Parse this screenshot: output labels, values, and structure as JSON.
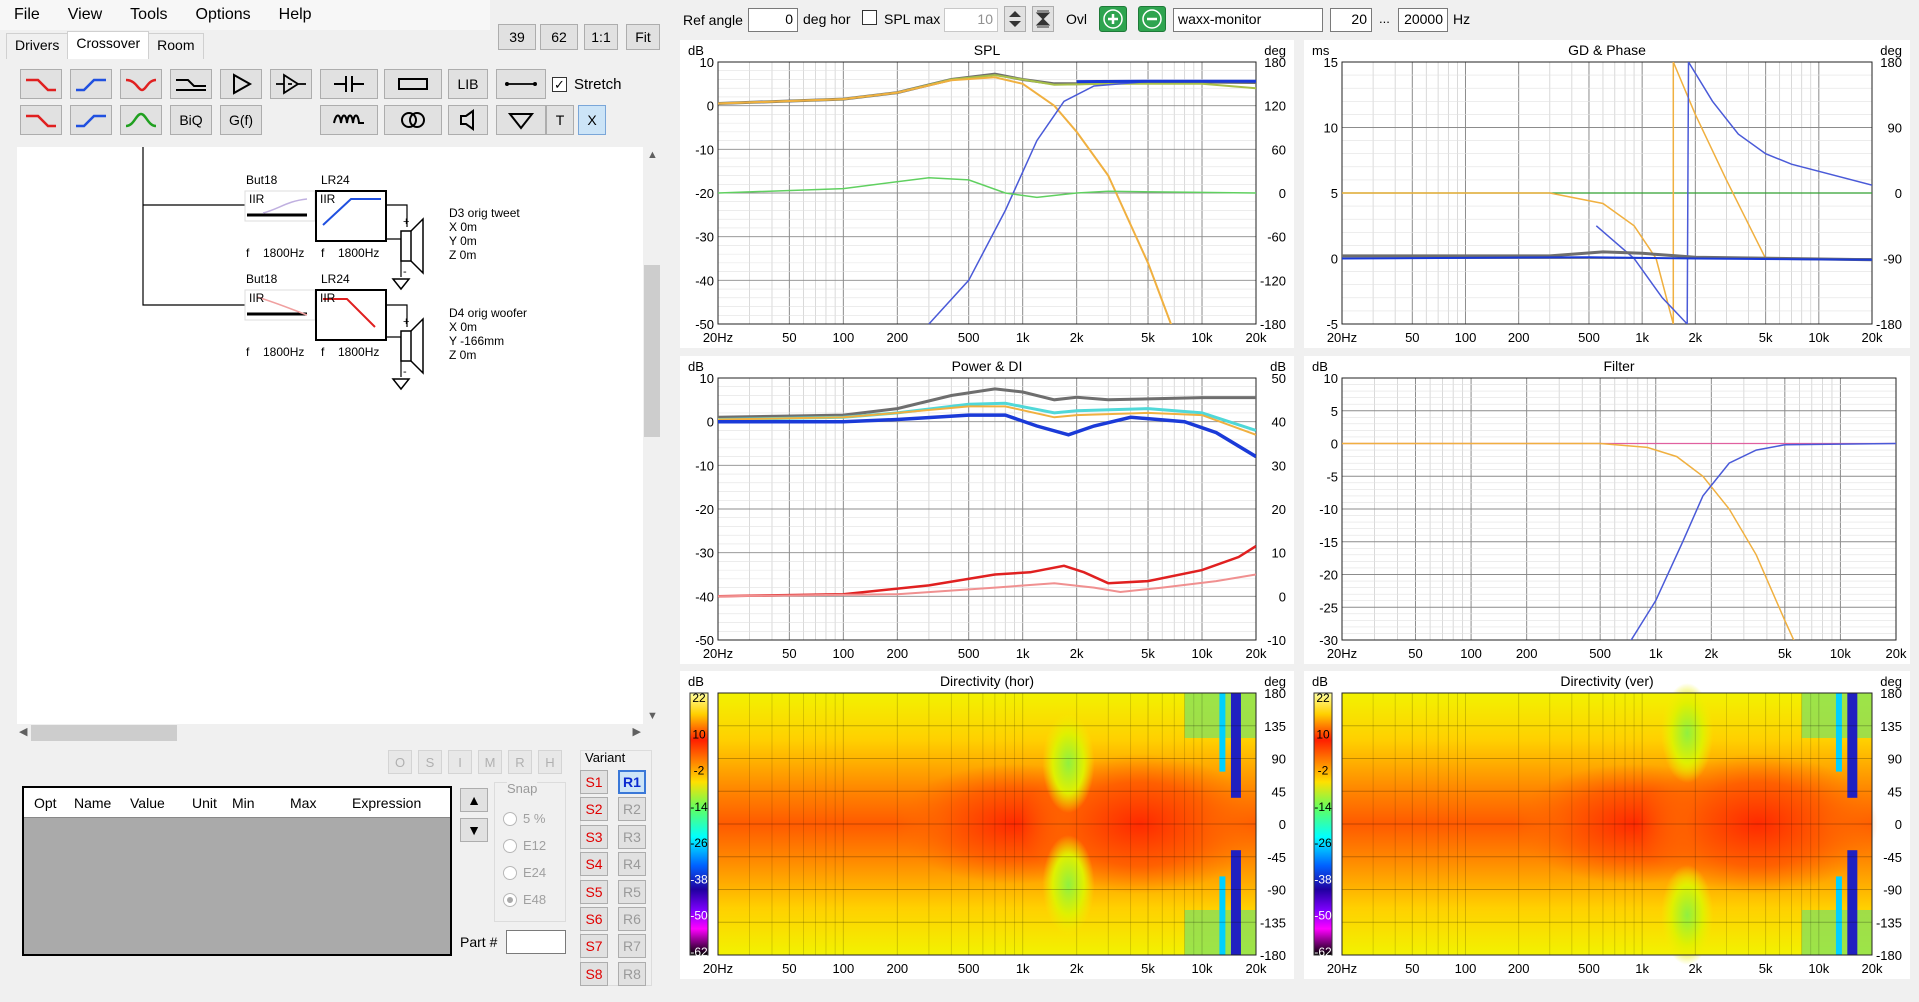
{
  "menu": [
    "File",
    "View",
    "Tools",
    "Options",
    "Help"
  ],
  "tabs": [
    "Drivers",
    "Crossover",
    "Room"
  ],
  "zoom_buttons": [
    "39",
    "62",
    "1:1",
    "Fit"
  ],
  "toolbar": {
    "lib": "LIB",
    "biq": "BiQ",
    "gf": "G(f)",
    "t": "T",
    "x": "X",
    "stretch": "Stretch"
  },
  "schematic": {
    "top": {
      "filter1_name": "But18",
      "filter2_name": "LR24",
      "type": "IIR",
      "f_label": "f",
      "freq": "1800Hz",
      "driver": "D3 orig tweet",
      "x": "X 0m",
      "y": "Y 0m",
      "z": "Z 0m"
    },
    "bottom": {
      "filter1_name": "But18",
      "filter2_name": "LR24",
      "type": "IIR",
      "f_label": "f",
      "freq": "1800Hz",
      "driver": "D4 orig woofer",
      "x": "X 0m",
      "y": "Y -166mm",
      "z": "Z 0m"
    }
  },
  "small_buttons": [
    "O",
    "S",
    "I",
    "M",
    "R",
    "H"
  ],
  "table_headers": [
    "Opt",
    "Name",
    "Value",
    "Unit",
    "Min",
    "Max",
    "Expression"
  ],
  "snap": {
    "title": "Snap",
    "options": [
      "5 %",
      "E12",
      "E24",
      "E48"
    ],
    "selected": "E48"
  },
  "part_label": "Part #",
  "variant": {
    "title": "Variant",
    "s": [
      "S1",
      "S2",
      "S3",
      "S4",
      "S5",
      "S6",
      "S7",
      "S8"
    ],
    "r": [
      "R1",
      "R2",
      "R3",
      "R4",
      "R5",
      "R6",
      "R7",
      "R8"
    ],
    "selected": "R1"
  },
  "topbar": {
    "ref_angle_label": "Ref angle",
    "ref_angle_value": "0",
    "deg_hor": "deg hor",
    "spl_max_label": "SPL max",
    "spl_max_value": "10",
    "ovl": "Ovl",
    "name_value": "waxx-monitor",
    "f_min": "20",
    "ellipsis": "...",
    "f_max": "20000",
    "hz": "Hz"
  },
  "freq_ticks": [
    "20Hz",
    "50",
    "100",
    "200",
    "500",
    "1k",
    "2k",
    "5k",
    "10k",
    "20k"
  ],
  "colors": {
    "orange": "#f0b040",
    "blue": "#4a5ad8",
    "green": "#60d060",
    "gray": "#6e6e6e",
    "navy": "#1a3ad8",
    "olive": "#a8c048",
    "red": "#e02020",
    "pink": "#f09090",
    "cyan": "#50d8d8",
    "darkgreen": "#30a030"
  },
  "charts": {
    "spl": {
      "title": "SPL",
      "unit_left": "dB",
      "unit_right": "deg",
      "left_ticks": [
        "10",
        "0",
        "-10",
        "-20",
        "-30",
        "-40",
        "-50"
      ],
      "right_ticks": [
        "180",
        "120",
        "60",
        "0",
        "-60",
        "-120",
        "-180"
      ]
    },
    "gd": {
      "title": "GD & Phase",
      "unit_left": "ms",
      "unit_right": "deg",
      "left_ticks": [
        "15",
        "10",
        "5",
        "0",
        "-5"
      ],
      "right_ticks": [
        "180",
        "90",
        "0",
        "-90",
        "-180"
      ]
    },
    "power": {
      "title": "Power & DI",
      "unit_left": "dB",
      "unit_right": "dB",
      "left_ticks": [
        "10",
        "0",
        "-10",
        "-20",
        "-30",
        "-40",
        "-50"
      ],
      "right_ticks": [
        "50",
        "40",
        "30",
        "20",
        "10",
        "0",
        "-10"
      ]
    },
    "filter": {
      "title": "Filter",
      "unit_left": "dB",
      "left_ticks": [
        "10",
        "5",
        "0",
        "-5",
        "-10",
        "-15",
        "-20",
        "-25",
        "-30"
      ]
    },
    "dir_hor": {
      "title": "Directivity (hor)",
      "unit_left": "dB",
      "unit_right": "deg",
      "scale": [
        "22",
        "10",
        "-2",
        "-14",
        "-26",
        "-38",
        "-50",
        "-62"
      ],
      "right_ticks": [
        "180",
        "135",
        "90",
        "45",
        "0",
        "-45",
        "-90",
        "-135",
        "-180"
      ]
    },
    "dir_ver": {
      "title": "Directivity (ver)",
      "unit_left": "dB",
      "unit_right": "deg",
      "scale": [
        "22",
        "10",
        "-2",
        "-14",
        "-26",
        "-38",
        "-50",
        "-62"
      ],
      "right_ticks": [
        "180",
        "135",
        "90",
        "45",
        "0",
        "-45",
        "-90",
        "-135",
        "-180"
      ]
    }
  }
}
